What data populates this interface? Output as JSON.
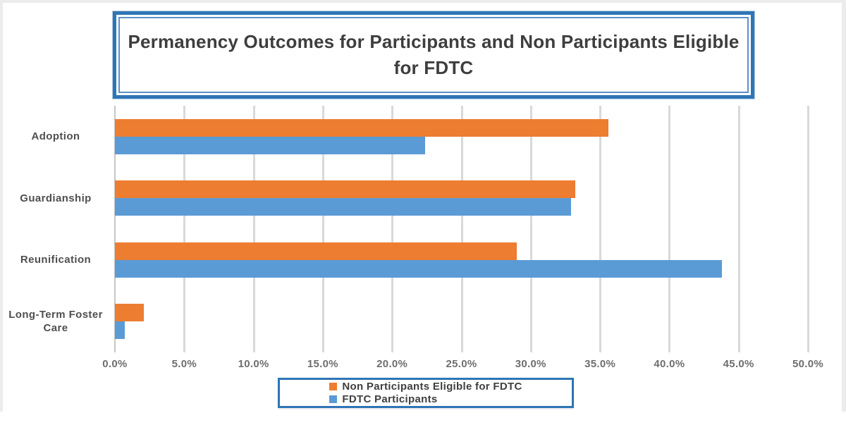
{
  "chart_data": {
    "type": "bar",
    "orientation": "horizontal",
    "title": "Permanency Outcomes for Participants and Non Participants Eligible for FDTC",
    "categories": [
      "Adoption",
      "Guardianship",
      "Reunification",
      "Long-Term Foster Care"
    ],
    "series": [
      {
        "name": "Non Participants Eligible for FDTC",
        "color": "#ED7D31",
        "values": [
          35.6,
          33.2,
          29.0,
          2.1
        ]
      },
      {
        "name": "FDTC Participants",
        "color": "#5B9BD5",
        "values": [
          22.4,
          32.9,
          43.8,
          0.7
        ]
      }
    ],
    "value_axis": {
      "min": 0,
      "max": 50,
      "tick_step": 5,
      "unit": "%",
      "tick_labels": [
        "0.0%",
        "5.0%",
        "10.0%",
        "15.0%",
        "20.0%",
        "25.0%",
        "30.0%",
        "35.0%",
        "40.0%",
        "45.0%",
        "50.0%"
      ]
    },
    "grid": true,
    "legend_position": "bottom",
    "style_colors": {
      "box_border_blue": "#2e75b6",
      "gridline": "#d9d9d9",
      "title_text": "#3e3e3e",
      "label_text": "#4f4f4f",
      "tick_text": "#6e6e6e"
    }
  }
}
